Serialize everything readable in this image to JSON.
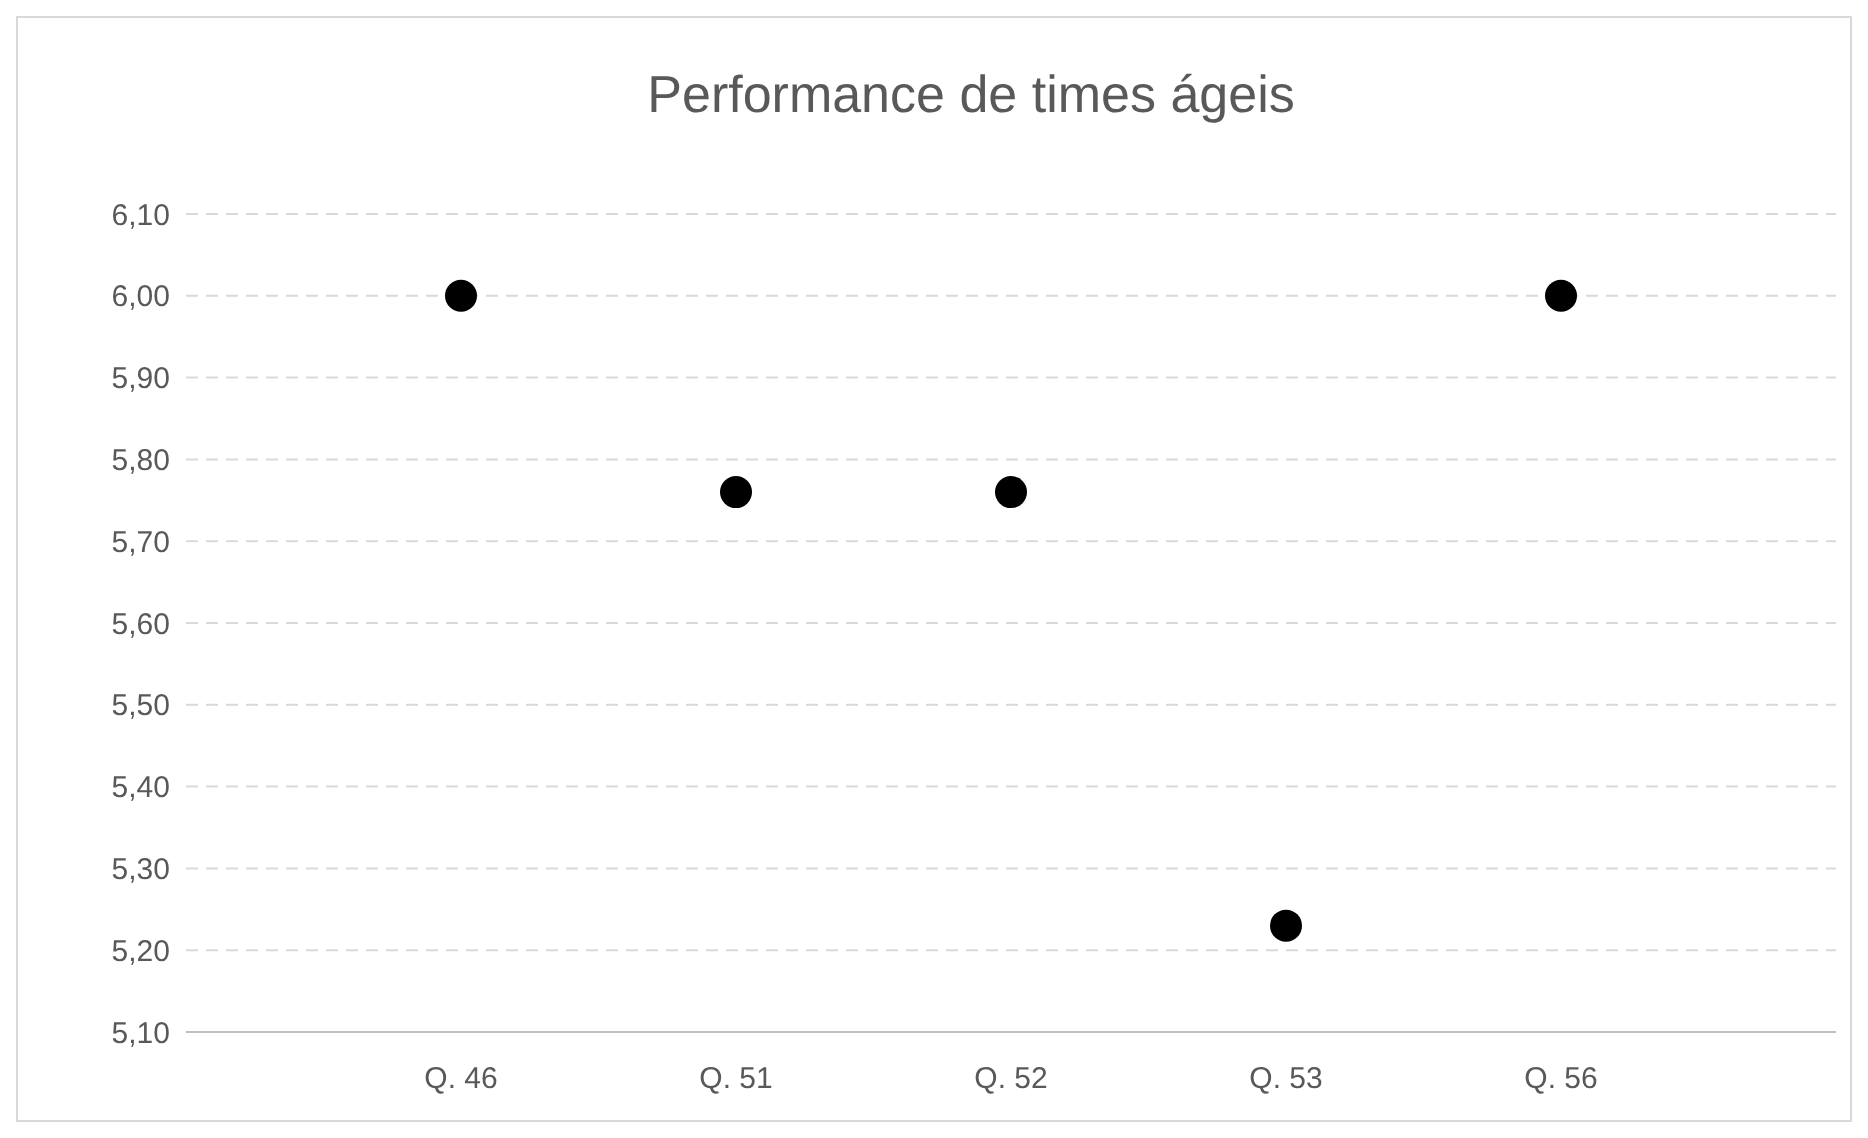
{
  "chart_data": {
    "type": "scatter",
    "title": "Performance de times ágeis",
    "categories": [
      "Q. 46",
      "Q. 51",
      "Q. 52",
      "Q. 53",
      "Q. 56"
    ],
    "values": [
      6.0,
      5.76,
      5.76,
      5.23,
      6.0
    ],
    "color": "#000000",
    "marker": "circle",
    "ylim": [
      5.1,
      6.1
    ],
    "yticks": [
      {
        "value": 5.1,
        "label": "5,10"
      },
      {
        "value": 5.2,
        "label": "5,20"
      },
      {
        "value": 5.3,
        "label": "5,30"
      },
      {
        "value": 5.4,
        "label": "5,40"
      },
      {
        "value": 5.5,
        "label": "5,50"
      },
      {
        "value": 5.6,
        "label": "5,60"
      },
      {
        "value": 5.7,
        "label": "5,70"
      },
      {
        "value": 5.8,
        "label": "5,80"
      },
      {
        "value": 5.9,
        "label": "5,90"
      },
      {
        "value": 6.0,
        "label": "6,00"
      },
      {
        "value": 6.1,
        "label": "6,10"
      }
    ],
    "grid": "y"
  }
}
